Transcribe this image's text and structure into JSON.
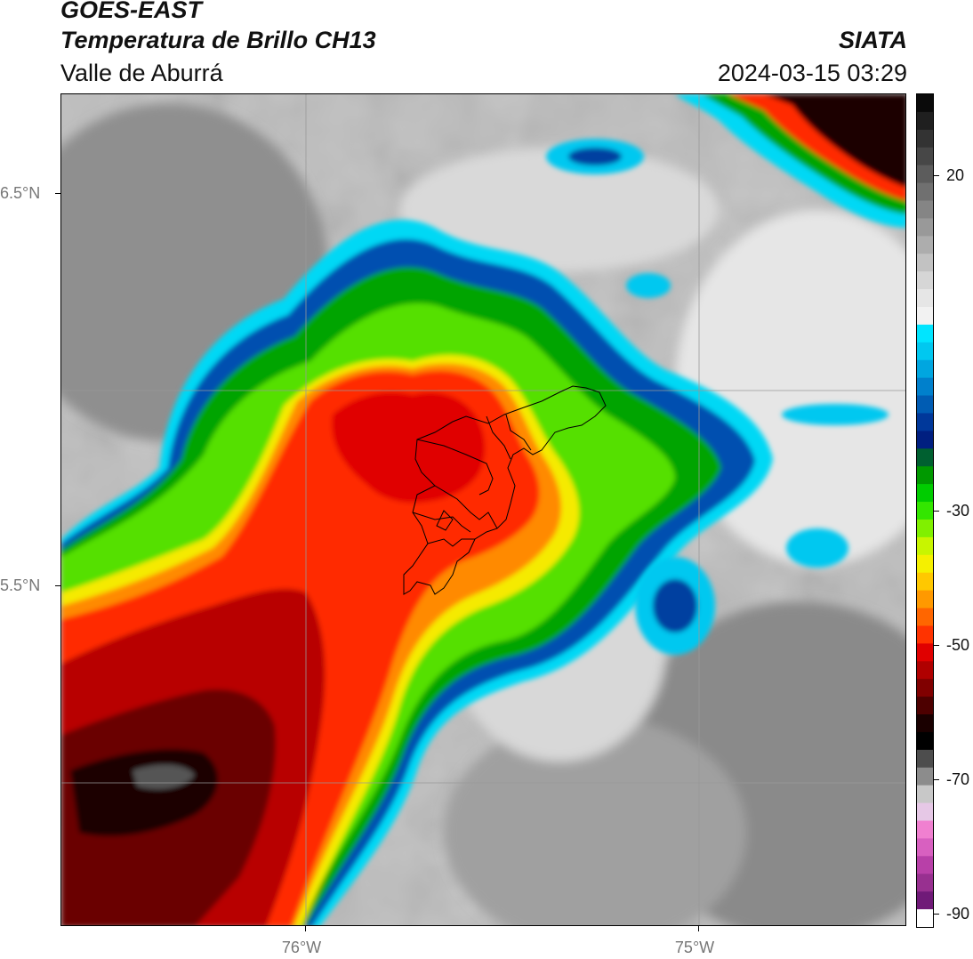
{
  "header": {
    "satellite": "GOES-EAST",
    "product": "Temperatura de Brillo CH13",
    "region": "Valle de Aburrá",
    "brand": "SIATA",
    "datetime": "2024-03-15 03:29"
  },
  "axes": {
    "x_ticks": [
      {
        "value": -76,
        "label": "76°W"
      },
      {
        "value": -75,
        "label": "75°W"
      }
    ],
    "y_ticks": [
      {
        "value": 6.5,
        "label": "6.5°N"
      },
      {
        "value": 5.5,
        "label": "5.5°N"
      }
    ],
    "gridlines": true
  },
  "colorbar": {
    "ticks": [
      {
        "value": 20,
        "label": "20"
      },
      {
        "value": -30,
        "label": "-30"
      },
      {
        "value": -50,
        "label": "-50"
      },
      {
        "value": -70,
        "label": "-70"
      },
      {
        "value": -90,
        "label": "-90"
      }
    ],
    "range": [
      -92,
      32
    ],
    "colors_top_to_bottom": [
      "#0a0a0a",
      "#1f1f1f",
      "#333333",
      "#474747",
      "#5c5c5c",
      "#707070",
      "#858585",
      "#999999",
      "#adadad",
      "#c2c2c2",
      "#d6d6d6",
      "#e6e6e6",
      "#f2f2f2",
      "#00e5ff",
      "#00c8f0",
      "#00a6e0",
      "#0080cc",
      "#005cb3",
      "#00389a",
      "#001f80",
      "#006030",
      "#009900",
      "#00cc00",
      "#33e600",
      "#80f000",
      "#c8f500",
      "#f5f000",
      "#ffc800",
      "#ff9900",
      "#ff6600",
      "#ff3300",
      "#e00000",
      "#b00000",
      "#800000",
      "#4d0000",
      "#1a0000",
      "#000000",
      "#4d4d4d",
      "#8c8c8c",
      "#c8c8c8",
      "#e6c8e6",
      "#f080d0",
      "#d860c0",
      "#b840a8",
      "#983090",
      "#701a78",
      "#ffffff"
    ]
  }
}
